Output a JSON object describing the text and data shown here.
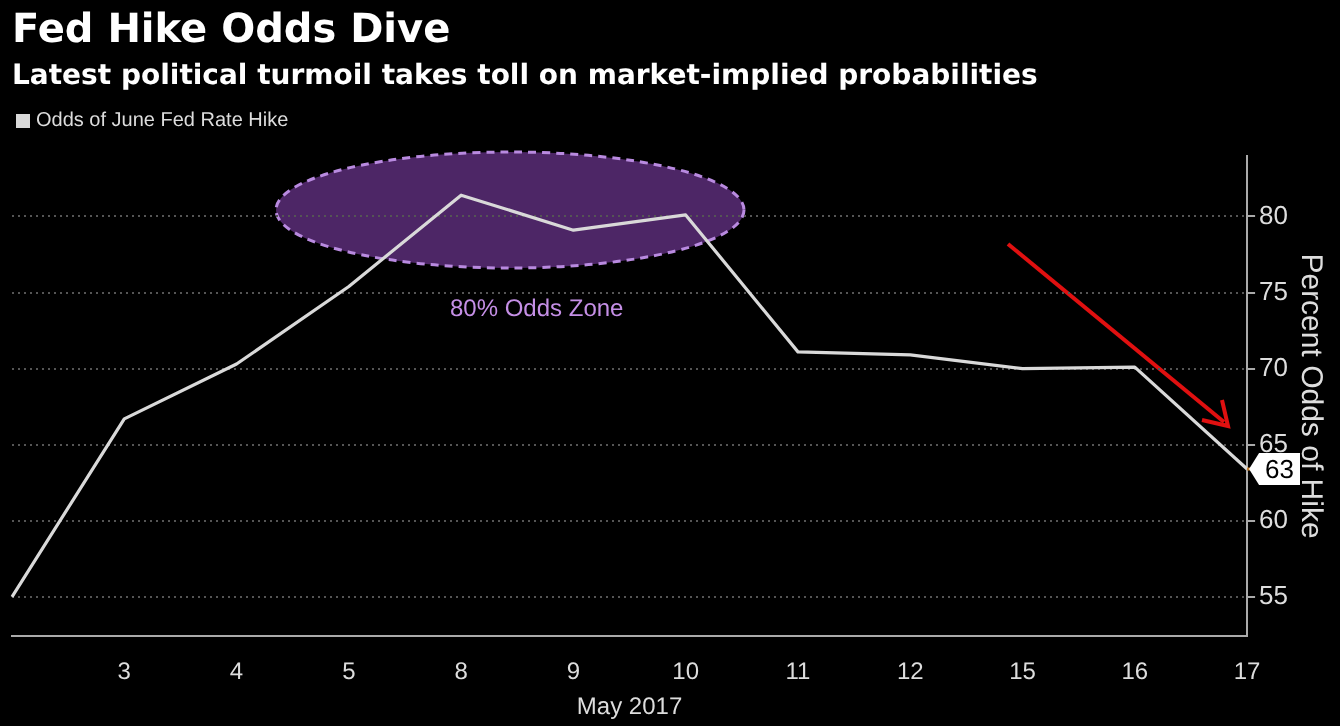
{
  "chart_data": {
    "type": "line",
    "title": "Fed Hike Odds Dive",
    "subtitle": "Latest political turmoil takes toll on market-implied probabilities",
    "categories": [
      null,
      "3",
      "4",
      "5",
      "8",
      "9",
      "10",
      "11",
      "12",
      "15",
      "16",
      "17"
    ],
    "series": [
      {
        "name": "Odds of June Fed Rate Hike",
        "color": "#d9d9d9",
        "values": [
          55,
          66.7,
          70.3,
          75.4,
          81.4,
          79.1,
          80.1,
          71.1,
          70.9,
          70.0,
          70.1,
          63.4
        ],
        "value_labels": [
          null,
          null,
          null,
          null,
          null,
          null,
          null,
          null,
          null,
          null,
          null,
          "63"
        ]
      }
    ],
    "xlabel": "May 2017",
    "ylabel": "Percent Odds of Hike",
    "ylim": [
      52.4,
      84
    ],
    "yticks": [
      55,
      60,
      65,
      70,
      75,
      80
    ],
    "annotations": [
      "80% Odds Zone"
    ],
    "grid": "y",
    "legend": "top left",
    "marker": "none",
    "line_style": "solid"
  }
}
